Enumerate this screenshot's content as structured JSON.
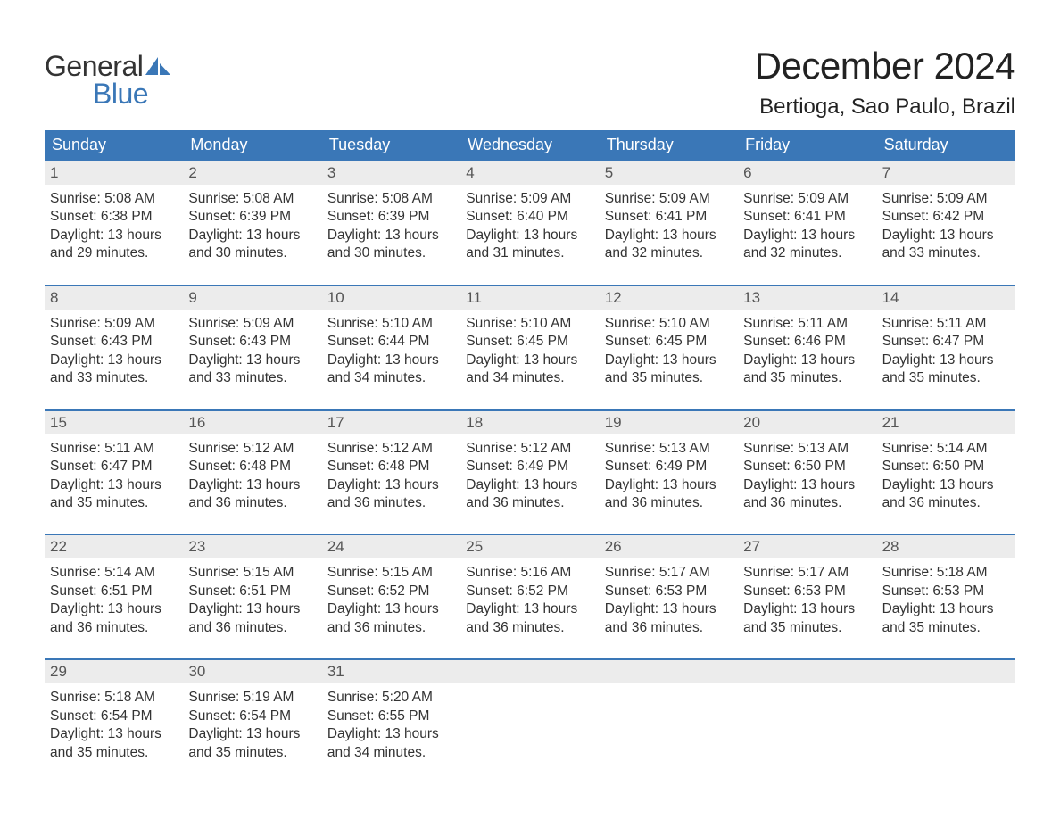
{
  "brand": {
    "word1": "General",
    "word2": "Blue",
    "word1_color": "#333333",
    "word2_color": "#3a77b7",
    "sail_color": "#3a77b7"
  },
  "title": "December 2024",
  "location": "Bertioga, Sao Paulo, Brazil",
  "colors": {
    "header_bg": "#3a77b7",
    "header_text": "#ffffff",
    "daynum_bg": "#ececec",
    "daynum_text": "#555555",
    "body_text": "#333333",
    "row_divider": "#3a77b7",
    "page_bg": "#ffffff"
  },
  "typography": {
    "month_title_size_pt": 32,
    "location_size_pt": 18,
    "weekday_size_pt": 14,
    "daynum_size_pt": 13,
    "body_size_pt": 12,
    "font_family": "Arial"
  },
  "weekdays": [
    "Sunday",
    "Monday",
    "Tuesday",
    "Wednesday",
    "Thursday",
    "Friday",
    "Saturday"
  ],
  "weeks": [
    [
      {
        "n": "1",
        "sunrise": "Sunrise: 5:08 AM",
        "sunset": "Sunset: 6:38 PM",
        "day1": "Daylight: 13 hours",
        "day2": "and 29 minutes."
      },
      {
        "n": "2",
        "sunrise": "Sunrise: 5:08 AM",
        "sunset": "Sunset: 6:39 PM",
        "day1": "Daylight: 13 hours",
        "day2": "and 30 minutes."
      },
      {
        "n": "3",
        "sunrise": "Sunrise: 5:08 AM",
        "sunset": "Sunset: 6:39 PM",
        "day1": "Daylight: 13 hours",
        "day2": "and 30 minutes."
      },
      {
        "n": "4",
        "sunrise": "Sunrise: 5:09 AM",
        "sunset": "Sunset: 6:40 PM",
        "day1": "Daylight: 13 hours",
        "day2": "and 31 minutes."
      },
      {
        "n": "5",
        "sunrise": "Sunrise: 5:09 AM",
        "sunset": "Sunset: 6:41 PM",
        "day1": "Daylight: 13 hours",
        "day2": "and 32 minutes."
      },
      {
        "n": "6",
        "sunrise": "Sunrise: 5:09 AM",
        "sunset": "Sunset: 6:41 PM",
        "day1": "Daylight: 13 hours",
        "day2": "and 32 minutes."
      },
      {
        "n": "7",
        "sunrise": "Sunrise: 5:09 AM",
        "sunset": "Sunset: 6:42 PM",
        "day1": "Daylight: 13 hours",
        "day2": "and 33 minutes."
      }
    ],
    [
      {
        "n": "8",
        "sunrise": "Sunrise: 5:09 AM",
        "sunset": "Sunset: 6:43 PM",
        "day1": "Daylight: 13 hours",
        "day2": "and 33 minutes."
      },
      {
        "n": "9",
        "sunrise": "Sunrise: 5:09 AM",
        "sunset": "Sunset: 6:43 PM",
        "day1": "Daylight: 13 hours",
        "day2": "and 33 minutes."
      },
      {
        "n": "10",
        "sunrise": "Sunrise: 5:10 AM",
        "sunset": "Sunset: 6:44 PM",
        "day1": "Daylight: 13 hours",
        "day2": "and 34 minutes."
      },
      {
        "n": "11",
        "sunrise": "Sunrise: 5:10 AM",
        "sunset": "Sunset: 6:45 PM",
        "day1": "Daylight: 13 hours",
        "day2": "and 34 minutes."
      },
      {
        "n": "12",
        "sunrise": "Sunrise: 5:10 AM",
        "sunset": "Sunset: 6:45 PM",
        "day1": "Daylight: 13 hours",
        "day2": "and 35 minutes."
      },
      {
        "n": "13",
        "sunrise": "Sunrise: 5:11 AM",
        "sunset": "Sunset: 6:46 PM",
        "day1": "Daylight: 13 hours",
        "day2": "and 35 minutes."
      },
      {
        "n": "14",
        "sunrise": "Sunrise: 5:11 AM",
        "sunset": "Sunset: 6:47 PM",
        "day1": "Daylight: 13 hours",
        "day2": "and 35 minutes."
      }
    ],
    [
      {
        "n": "15",
        "sunrise": "Sunrise: 5:11 AM",
        "sunset": "Sunset: 6:47 PM",
        "day1": "Daylight: 13 hours",
        "day2": "and 35 minutes."
      },
      {
        "n": "16",
        "sunrise": "Sunrise: 5:12 AM",
        "sunset": "Sunset: 6:48 PM",
        "day1": "Daylight: 13 hours",
        "day2": "and 36 minutes."
      },
      {
        "n": "17",
        "sunrise": "Sunrise: 5:12 AM",
        "sunset": "Sunset: 6:48 PM",
        "day1": "Daylight: 13 hours",
        "day2": "and 36 minutes."
      },
      {
        "n": "18",
        "sunrise": "Sunrise: 5:12 AM",
        "sunset": "Sunset: 6:49 PM",
        "day1": "Daylight: 13 hours",
        "day2": "and 36 minutes."
      },
      {
        "n": "19",
        "sunrise": "Sunrise: 5:13 AM",
        "sunset": "Sunset: 6:49 PM",
        "day1": "Daylight: 13 hours",
        "day2": "and 36 minutes."
      },
      {
        "n": "20",
        "sunrise": "Sunrise: 5:13 AM",
        "sunset": "Sunset: 6:50 PM",
        "day1": "Daylight: 13 hours",
        "day2": "and 36 minutes."
      },
      {
        "n": "21",
        "sunrise": "Sunrise: 5:14 AM",
        "sunset": "Sunset: 6:50 PM",
        "day1": "Daylight: 13 hours",
        "day2": "and 36 minutes."
      }
    ],
    [
      {
        "n": "22",
        "sunrise": "Sunrise: 5:14 AM",
        "sunset": "Sunset: 6:51 PM",
        "day1": "Daylight: 13 hours",
        "day2": "and 36 minutes."
      },
      {
        "n": "23",
        "sunrise": "Sunrise: 5:15 AM",
        "sunset": "Sunset: 6:51 PM",
        "day1": "Daylight: 13 hours",
        "day2": "and 36 minutes."
      },
      {
        "n": "24",
        "sunrise": "Sunrise: 5:15 AM",
        "sunset": "Sunset: 6:52 PM",
        "day1": "Daylight: 13 hours",
        "day2": "and 36 minutes."
      },
      {
        "n": "25",
        "sunrise": "Sunrise: 5:16 AM",
        "sunset": "Sunset: 6:52 PM",
        "day1": "Daylight: 13 hours",
        "day2": "and 36 minutes."
      },
      {
        "n": "26",
        "sunrise": "Sunrise: 5:17 AM",
        "sunset": "Sunset: 6:53 PM",
        "day1": "Daylight: 13 hours",
        "day2": "and 36 minutes."
      },
      {
        "n": "27",
        "sunrise": "Sunrise: 5:17 AM",
        "sunset": "Sunset: 6:53 PM",
        "day1": "Daylight: 13 hours",
        "day2": "and 35 minutes."
      },
      {
        "n": "28",
        "sunrise": "Sunrise: 5:18 AM",
        "sunset": "Sunset: 6:53 PM",
        "day1": "Daylight: 13 hours",
        "day2": "and 35 minutes."
      }
    ],
    [
      {
        "n": "29",
        "sunrise": "Sunrise: 5:18 AM",
        "sunset": "Sunset: 6:54 PM",
        "day1": "Daylight: 13 hours",
        "day2": "and 35 minutes."
      },
      {
        "n": "30",
        "sunrise": "Sunrise: 5:19 AM",
        "sunset": "Sunset: 6:54 PM",
        "day1": "Daylight: 13 hours",
        "day2": "and 35 minutes."
      },
      {
        "n": "31",
        "sunrise": "Sunrise: 5:20 AM",
        "sunset": "Sunset: 6:55 PM",
        "day1": "Daylight: 13 hours",
        "day2": "and 34 minutes."
      },
      {
        "empty": true
      },
      {
        "empty": true
      },
      {
        "empty": true
      },
      {
        "empty": true
      }
    ]
  ]
}
